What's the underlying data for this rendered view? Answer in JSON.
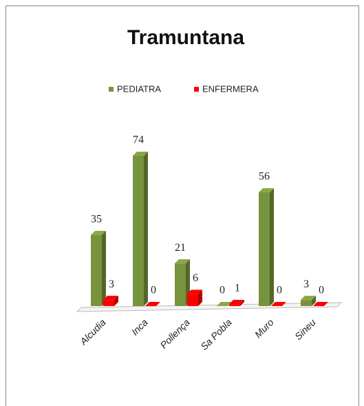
{
  "chart_data": {
    "type": "bar3d",
    "title": "Tramuntana",
    "categories": [
      "Alcudia",
      "Inca",
      "Pollença",
      "Sa Pobla",
      "Muro",
      "Sineu"
    ],
    "series": [
      {
        "name": "PEDIATRA",
        "color": "#77933c",
        "values": [
          35,
          74,
          21,
          0,
          56,
          3
        ]
      },
      {
        "name": "ENFERMERA",
        "color": "#ff0000",
        "values": [
          3,
          0,
          6,
          1,
          0,
          0
        ]
      }
    ],
    "legend": "top"
  }
}
